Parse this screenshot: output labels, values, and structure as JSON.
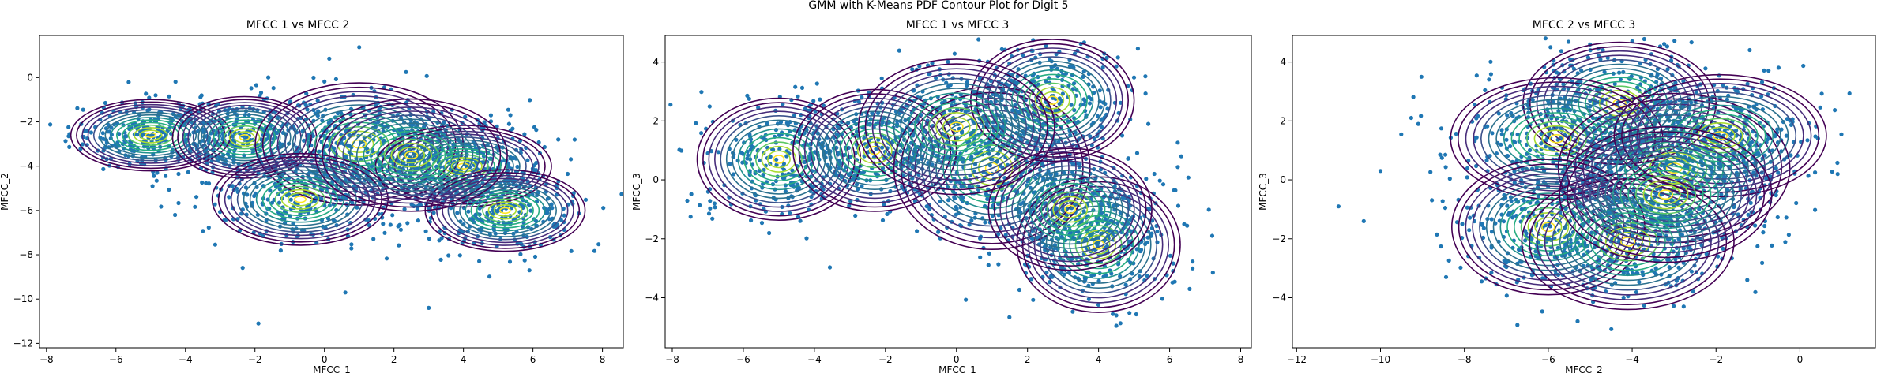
{
  "figure": {
    "suptitle": "GMM with K-Means PDF Contour Plot for Digit 5"
  },
  "style": {
    "point_color": "#1f77b4",
    "contour_colors": [
      "#440154",
      "#472c7a",
      "#3b518b",
      "#2c718e",
      "#21908d",
      "#27ad81",
      "#5cc863",
      "#aadc32",
      "#fde725"
    ]
  },
  "chart_data": [
    {
      "type": "scatter",
      "title": "MFCC 1 vs MFCC 2",
      "xlabel": "MFCC_1",
      "ylabel": "MFCC_2",
      "xlim": [
        -8.2,
        8.6
      ],
      "ylim": [
        -12.2,
        1.9
      ],
      "xticks": [
        -8,
        -6,
        -4,
        -2,
        0,
        2,
        4,
        6,
        8
      ],
      "yticks": [
        -12,
        -10,
        -8,
        -6,
        -4,
        -2,
        0
      ],
      "overlay": "GMM PDF contours (viridis), 14 levels per component",
      "components": [
        {
          "mean": [
            -5.0,
            -2.6
          ],
          "sx": 1.0,
          "sy": 0.7
        },
        {
          "mean": [
            -2.3,
            -2.7
          ],
          "sx": 0.9,
          "sy": 0.8
        },
        {
          "mean": [
            1.0,
            -3.0
          ],
          "sx": 1.3,
          "sy": 1.2
        },
        {
          "mean": [
            -0.7,
            -5.5
          ],
          "sx": 1.1,
          "sy": 0.9
        },
        {
          "mean": [
            4.0,
            -4.0
          ],
          "sx": 1.1,
          "sy": 0.8
        },
        {
          "mean": [
            5.2,
            -6.0
          ],
          "sx": 1.0,
          "sy": 0.8
        },
        {
          "mean": [
            2.5,
            -3.5
          ],
          "sx": 1.2,
          "sy": 1.1
        }
      ],
      "outliers": [
        [
          -7.0,
          -2.1
        ],
        [
          -1.9,
          -11.1
        ],
        [
          0.6,
          -9.7
        ],
        [
          3.0,
          -10.4
        ],
        [
          -4.3,
          -6.2
        ],
        [
          7.2,
          -2.8
        ],
        [
          -6.9,
          -2.4
        ],
        [
          5.9,
          -8.7
        ]
      ]
    },
    {
      "type": "scatter",
      "title": "MFCC 1 vs MFCC 3",
      "xlabel": "MFCC_1",
      "ylabel": "MFCC_3",
      "xlim": [
        -8.2,
        8.3
      ],
      "ylim": [
        -5.7,
        4.9
      ],
      "xticks": [
        -8,
        -6,
        -4,
        -2,
        0,
        2,
        4,
        6,
        8
      ],
      "yticks": [
        -4,
        -2,
        0,
        2,
        4
      ],
      "overlay": "GMM PDF contours (viridis), 14 levels per component",
      "components": [
        {
          "mean": [
            -5.0,
            0.7
          ],
          "sx": 1.0,
          "sy": 0.9
        },
        {
          "mean": [
            -2.3,
            1.0
          ],
          "sx": 1.0,
          "sy": 0.9
        },
        {
          "mean": [
            1.0,
            0.4
          ],
          "sx": 1.2,
          "sy": 1.2
        },
        {
          "mean": [
            2.7,
            2.7
          ],
          "sx": 1.0,
          "sy": 0.9
        },
        {
          "mean": [
            4.0,
            -2.2
          ],
          "sx": 1.0,
          "sy": 1.0
        },
        {
          "mean": [
            3.2,
            -1.0
          ],
          "sx": 1.0,
          "sy": 0.9
        },
        {
          "mean": [
            0.0,
            1.8
          ],
          "sx": 1.2,
          "sy": 1.0
        }
      ],
      "outliers": [
        [
          -7.0,
          0.9
        ],
        [
          5.4,
          1.9
        ],
        [
          7.2,
          -1.9
        ],
        [
          -5.8,
          -0.9
        ],
        [
          4.5,
          -4.6
        ]
      ]
    },
    {
      "type": "scatter",
      "title": "MFCC 2 vs MFCC 3",
      "xlabel": "MFCC_2",
      "ylabel": "MFCC_3",
      "xlim": [
        -12.1,
        1.8
      ],
      "ylim": [
        -5.7,
        4.9
      ],
      "xticks": [
        -12,
        -10,
        -8,
        -6,
        -4,
        -2,
        0
      ],
      "yticks": [
        -4,
        -2,
        0,
        2,
        4
      ],
      "overlay": "GMM PDF contours (viridis), 14 levels per component",
      "components": [
        {
          "mean": [
            -4.3,
            2.6
          ],
          "sx": 1.0,
          "sy": 0.9
        },
        {
          "mean": [
            -5.8,
            1.4
          ],
          "sx": 1.1,
          "sy": 0.9
        },
        {
          "mean": [
            -3.0,
            0.4
          ],
          "sx": 1.2,
          "sy": 1.1
        },
        {
          "mean": [
            -1.9,
            1.5
          ],
          "sx": 1.1,
          "sy": 0.9
        },
        {
          "mean": [
            -6.0,
            -1.6
          ],
          "sx": 1.0,
          "sy": 1.0
        },
        {
          "mean": [
            -4.1,
            -2.1
          ],
          "sx": 1.1,
          "sy": 1.0
        },
        {
          "mean": [
            -3.2,
            -0.5
          ],
          "sx": 1.1,
          "sy": 1.0
        }
      ],
      "outliers": [
        [
          -11.0,
          -0.9
        ],
        [
          -10.4,
          -1.4
        ],
        [
          -10.0,
          0.3
        ],
        [
          0.9,
          0.2
        ],
        [
          -5.3,
          -4.8
        ],
        [
          -9.1,
          1.9
        ]
      ]
    }
  ]
}
